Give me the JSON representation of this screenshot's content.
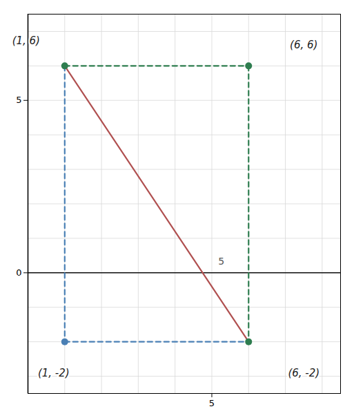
{
  "chart_data": {
    "type": "line",
    "xlim": [
      0,
      8.5
    ],
    "ylim": [
      -3.5,
      7.5
    ],
    "xticks": [
      5
    ],
    "yticks": [
      0,
      5
    ],
    "grid": true,
    "series": [
      {
        "type": "line",
        "color": "#4a80b5",
        "line_style": "dashed",
        "x": [
          1,
          6
        ],
        "values": [
          -2,
          -2
        ]
      },
      {
        "type": "line",
        "color": "#4a80b5",
        "line_style": "dashed",
        "x": [
          1,
          1
        ],
        "values": [
          6,
          -2
        ]
      },
      {
        "type": "line",
        "color": "#2e7d4f",
        "line_style": "dashed",
        "x": [
          1,
          6
        ],
        "values": [
          6,
          6
        ]
      },
      {
        "type": "line",
        "color": "#2e7d4f",
        "line_style": "dashed",
        "x": [
          6,
          6
        ],
        "values": [
          6,
          -2
        ]
      },
      {
        "type": "line",
        "color": "#b05050",
        "line_style": "solid",
        "x": [
          1,
          6
        ],
        "values": [
          6,
          -2
        ]
      },
      {
        "type": "scatter",
        "color": "#2e7d4f",
        "marker": "circle",
        "x": [
          1,
          6,
          6
        ],
        "values": [
          6,
          6,
          -2
        ]
      },
      {
        "type": "scatter",
        "color": "#4a80b5",
        "marker": "circle",
        "x": [
          1
        ],
        "values": [
          -2
        ]
      }
    ],
    "annotations": [
      {
        "text": "(1, 6)",
        "x": 1,
        "y": 6
      },
      {
        "text": "(6, 6)",
        "x": 6,
        "y": 6
      },
      {
        "text": "(1, -2)",
        "x": 1,
        "y": -2
      },
      {
        "text": "(6, -2)",
        "x": 6,
        "y": -2
      },
      {
        "text": "5",
        "x": 5.1,
        "y": 0.15
      }
    ]
  }
}
